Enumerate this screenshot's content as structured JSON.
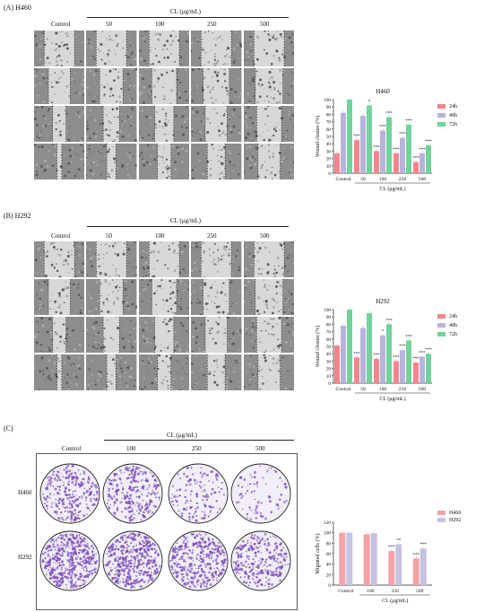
{
  "panels": [
    {
      "id": "A",
      "label": "(A)   H460",
      "conc_header": "CL (μg/mL)",
      "columns": [
        "Control",
        "50",
        "100",
        "250",
        "500"
      ],
      "chart": {
        "title": "H460",
        "ylabel": "Wound closure (%)",
        "xlabel": "CL (μg/mL)",
        "legend": [
          "24h",
          "48h",
          "72h"
        ]
      }
    },
    {
      "id": "B",
      "label": "(B)   H292",
      "conc_header": "CL (μg/mL)",
      "columns": [
        "Control",
        "50",
        "100",
        "250",
        "500"
      ],
      "chart": {
        "title": "H292",
        "ylabel": "Wound closure (%)",
        "xlabel": "CL (μg/mL)",
        "legend": [
          "24h",
          "48h",
          "72h"
        ]
      }
    },
    {
      "id": "C",
      "label": "(C)",
      "conc_header": "CL (μg/mL)",
      "columns": [
        "Control",
        "100",
        "250",
        "500"
      ],
      "rows": [
        "H460",
        "H292"
      ],
      "chart": {
        "ylabel": "Migrated cells (%)",
        "xlabel": "CL (μg/mL)",
        "legend": [
          "H460",
          "H292"
        ]
      }
    }
  ],
  "colors": {
    "h24": "#f4858c",
    "h48": "#b7b4dc",
    "h72": "#6fd39a",
    "h460": "#f4a3a8",
    "h292": "#c5c3e3",
    "crystal_violet": "#7b4fb8"
  },
  "chart_data": [
    {
      "type": "bar",
      "title": "H460",
      "xlabel": "CL (μg/mL)",
      "ylabel": "Wound closure (%)",
      "categories": [
        "Control",
        "50",
        "100",
        "250",
        "500"
      ],
      "ylim": [
        0,
        100
      ],
      "yticks": [
        0,
        10,
        20,
        30,
        40,
        50,
        60,
        70,
        80,
        90,
        100
      ],
      "series": [
        {
          "name": "24h",
          "values": [
            27,
            45,
            30,
            27,
            15
          ]
        },
        {
          "name": "48h",
          "values": [
            82,
            78,
            58,
            48,
            27
          ]
        },
        {
          "name": "72h",
          "values": [
            100,
            92,
            76,
            66,
            38
          ]
        }
      ],
      "significance": [
        [
          "",
          "***",
          "***",
          "***",
          "***"
        ],
        [
          "",
          "",
          "***",
          "***",
          "***"
        ],
        [
          "",
          "*",
          "***",
          "***",
          "***"
        ]
      ],
      "legend_position": "right"
    },
    {
      "type": "bar",
      "title": "H292",
      "xlabel": "CL (μg/mL)",
      "ylabel": "Wound closure (%)",
      "categories": [
        "Control",
        "50",
        "100",
        "250",
        "500"
      ],
      "ylim": [
        0,
        100
      ],
      "yticks": [
        0,
        10,
        20,
        30,
        40,
        50,
        60,
        70,
        80,
        90,
        100
      ],
      "series": [
        {
          "name": "24h",
          "values": [
            51,
            35,
            33,
            30,
            28
          ]
        },
        {
          "name": "48h",
          "values": [
            78,
            75,
            65,
            45,
            36
          ]
        },
        {
          "name": "72h",
          "values": [
            100,
            95,
            80,
            58,
            40
          ]
        }
      ],
      "significance": [
        [
          "",
          "***",
          "***",
          "***",
          "***"
        ],
        [
          "",
          "",
          "*",
          "***",
          "***"
        ],
        [
          "",
          "",
          "***",
          "***",
          "***"
        ]
      ],
      "legend_position": "right"
    },
    {
      "type": "bar",
      "xlabel": "CL (μg/mL)",
      "ylabel": "Migrated cells (%)",
      "categories": [
        "Control",
        "100",
        "250",
        "500"
      ],
      "ylim": [
        0,
        120
      ],
      "yticks": [
        0,
        20,
        40,
        60,
        80,
        100,
        120
      ],
      "series": [
        {
          "name": "H460",
          "values": [
            100,
            97,
            65,
            51
          ]
        },
        {
          "name": "H292",
          "values": [
            100,
            99,
            78,
            70
          ]
        }
      ],
      "significance": [
        [
          "",
          "",
          "***",
          "***"
        ],
        [
          "",
          "",
          "**",
          "***"
        ]
      ],
      "legend_position": "top-right"
    }
  ]
}
